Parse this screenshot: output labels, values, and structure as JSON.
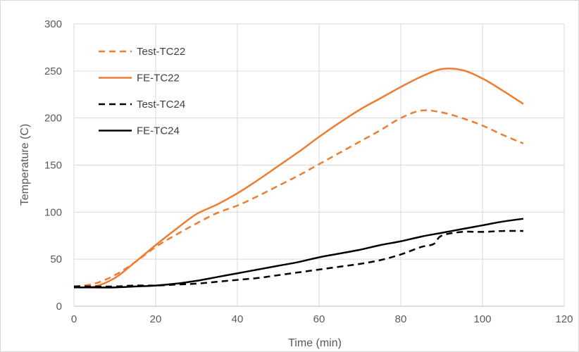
{
  "chart_data": {
    "type": "line",
    "title": "",
    "xlabel": "Time (min)",
    "ylabel": "Temperature (C)",
    "xlim": [
      0,
      120
    ],
    "ylim": [
      0,
      300
    ],
    "xticks": [
      0,
      20,
      40,
      60,
      80,
      100,
      120
    ],
    "yticks": [
      0,
      50,
      100,
      150,
      200,
      250,
      300
    ],
    "grid": true,
    "legend_position": "top-left",
    "series": [
      {
        "name": "Test-TC22",
        "color": "#ed7d31",
        "dash": "dashed",
        "x": [
          0,
          5,
          10,
          15,
          20,
          25,
          30,
          35,
          40,
          45,
          50,
          55,
          60,
          65,
          70,
          75,
          80,
          85,
          90,
          95,
          100,
          105,
          110
        ],
        "y": [
          21,
          24,
          33,
          47,
          63,
          76,
          88,
          99,
          107,
          117,
          128,
          139,
          151,
          163,
          175,
          187,
          200,
          208,
          206,
          200,
          192,
          182,
          173
        ]
      },
      {
        "name": "FE-TC22",
        "color": "#ed7d31",
        "dash": "solid",
        "x": [
          0,
          5,
          10,
          15,
          20,
          25,
          30,
          35,
          40,
          45,
          50,
          55,
          60,
          65,
          70,
          75,
          80,
          85,
          90,
          95,
          100,
          105,
          110
        ],
        "y": [
          20,
          21,
          30,
          47,
          65,
          82,
          98,
          108,
          120,
          134,
          149,
          164,
          180,
          195,
          209,
          221,
          233,
          244,
          252,
          251,
          242,
          229,
          215
        ]
      },
      {
        "name": "Test-TC24",
        "color": "#000000",
        "dash": "dashed",
        "x": [
          0,
          5,
          10,
          15,
          20,
          25,
          30,
          35,
          40,
          45,
          50,
          55,
          60,
          65,
          70,
          75,
          80,
          85,
          88,
          90,
          95,
          100,
          105,
          110
        ],
        "y": [
          21,
          21,
          21,
          22,
          22,
          23,
          24,
          26,
          28,
          30,
          33,
          36,
          39,
          42,
          45,
          49,
          55,
          63,
          66,
          75,
          79,
          79,
          80,
          80
        ]
      },
      {
        "name": "FE-TC24",
        "color": "#000000",
        "dash": "solid",
        "x": [
          0,
          5,
          10,
          15,
          20,
          25,
          30,
          35,
          40,
          45,
          50,
          55,
          60,
          65,
          70,
          75,
          80,
          85,
          90,
          95,
          100,
          105,
          110
        ],
        "y": [
          20,
          20,
          20,
          21,
          22,
          24,
          27,
          31,
          35,
          39,
          43,
          47,
          52,
          56,
          60,
          65,
          69,
          74,
          78,
          82,
          86,
          90,
          93
        ]
      }
    ]
  }
}
